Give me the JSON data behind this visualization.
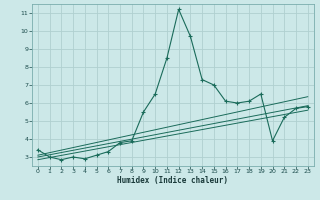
{
  "xlabel": "Humidex (Indice chaleur)",
  "background_color": "#cce8e8",
  "grid_color": "#b0d0d0",
  "line_color": "#1a6b5a",
  "xlim": [
    -0.5,
    23.5
  ],
  "ylim": [
    2.5,
    11.5
  ],
  "xticks": [
    0,
    1,
    2,
    3,
    4,
    5,
    6,
    7,
    8,
    9,
    10,
    11,
    12,
    13,
    14,
    15,
    16,
    17,
    18,
    19,
    20,
    21,
    22,
    23
  ],
  "yticks": [
    3,
    4,
    5,
    6,
    7,
    8,
    9,
    10,
    11
  ],
  "main_x": [
    0,
    1,
    2,
    3,
    4,
    5,
    6,
    7,
    8,
    9,
    10,
    11,
    12,
    13,
    14,
    15,
    16,
    17,
    18,
    19,
    20,
    21,
    22,
    23
  ],
  "main_y": [
    3.4,
    3.0,
    2.85,
    3.0,
    2.9,
    3.1,
    3.3,
    3.8,
    3.9,
    5.5,
    6.5,
    8.5,
    11.2,
    9.7,
    7.3,
    7.0,
    6.1,
    6.0,
    6.1,
    6.5,
    3.9,
    5.2,
    5.7,
    5.8
  ],
  "line1_x": [
    0,
    23
  ],
  "line1_y": [
    3.1,
    6.35
  ],
  "line2_x": [
    0,
    23
  ],
  "line2_y": [
    3.0,
    5.85
  ],
  "line3_x": [
    0,
    23
  ],
  "line3_y": [
    2.85,
    5.6
  ]
}
